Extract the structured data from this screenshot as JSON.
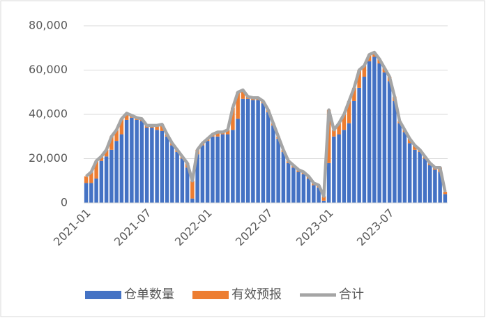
{
  "chart_data": {
    "type": "bar",
    "stacked": true,
    "categories": [
      "2021-01",
      null,
      null,
      null,
      null,
      null,
      null,
      null,
      null,
      null,
      null,
      null,
      "2021-07",
      null,
      null,
      null,
      null,
      null,
      null,
      null,
      null,
      null,
      null,
      null,
      "2022-01",
      null,
      null,
      null,
      null,
      null,
      null,
      null,
      null,
      null,
      null,
      null,
      "2022-07",
      null,
      null,
      null,
      null,
      null,
      null,
      null,
      null,
      null,
      null,
      null,
      "2023-01",
      null,
      null,
      null,
      null,
      null,
      null,
      null,
      null,
      null,
      null,
      null,
      "2023-07",
      null,
      null,
      null,
      null,
      null,
      null,
      null,
      null,
      null,
      null,
      null
    ],
    "series": [
      {
        "name": "仓单数量",
        "type": "bar",
        "color": "#4472c4",
        "values": [
          9000,
          9000,
          11000,
          19000,
          21000,
          24000,
          28000,
          31000,
          37500,
          38500,
          37500,
          37000,
          34000,
          34000,
          33000,
          32500,
          30000,
          26000,
          23000,
          20000,
          16000,
          2000,
          22000,
          26000,
          28000,
          30000,
          30000,
          31000,
          31000,
          33000,
          38000,
          47000,
          47000,
          46500,
          46500,
          45000,
          41000,
          35000,
          29000,
          23000,
          18000,
          16000,
          14000,
          13000,
          11000,
          8000,
          7000,
          1000,
          18000,
          30000,
          31000,
          33000,
          36000,
          46000,
          52000,
          57000,
          64000,
          66000,
          63000,
          59000,
          55000,
          46000,
          36000,
          32000,
          27000,
          24000,
          23000,
          20000,
          17000,
          15000,
          14000,
          4000
        ]
      },
      {
        "name": "有效预报",
        "type": "bar",
        "color": "#ed7d31",
        "values": [
          3000,
          5000,
          8000,
          2000,
          3000,
          6000,
          5000,
          7000,
          3000,
          1000,
          1000,
          1000,
          1000,
          1000,
          2000,
          3000,
          1000,
          1000,
          1000,
          1000,
          2000,
          8000,
          2000,
          1000,
          1000,
          1000,
          2000,
          1000,
          2000,
          10000,
          12000,
          4000,
          1000,
          1000,
          1000,
          1000,
          1000,
          1000,
          1000,
          1000,
          1000,
          1000,
          1000,
          1000,
          1000,
          1000,
          1000,
          2000,
          24000,
          3000,
          5000,
          7000,
          10000,
          6000,
          8000,
          5000,
          3000,
          2000,
          2000,
          2000,
          2000,
          2000,
          1000,
          1000,
          2000,
          2000,
          1000,
          1000,
          1000,
          1000,
          2000,
          1000
        ]
      },
      {
        "name": "合计",
        "type": "line",
        "color": "#a5a5a5",
        "values": [
          12000,
          14000,
          19000,
          21000,
          24000,
          30000,
          33000,
          38000,
          40500,
          39500,
          38500,
          38000,
          35000,
          35000,
          35000,
          35500,
          31000,
          27000,
          24000,
          21000,
          18000,
          10000,
          24000,
          27000,
          29000,
          31000,
          32000,
          32000,
          33000,
          43000,
          50000,
          51000,
          48000,
          47500,
          47500,
          46000,
          42000,
          36000,
          30000,
          24000,
          19000,
          17000,
          15000,
          14000,
          12000,
          9000,
          8000,
          3000,
          42000,
          33000,
          36000,
          40000,
          46000,
          52000,
          60000,
          62000,
          67000,
          68000,
          65000,
          61000,
          57000,
          48000,
          37000,
          33000,
          29000,
          26000,
          24000,
          21000,
          18000,
          16000,
          16000,
          5000
        ]
      }
    ],
    "ylim": [
      0,
      80000
    ],
    "yticks": [
      0,
      {
        "value": 20000,
        "label": "20,000"
      },
      {
        "value": 40000,
        "label": "40,000"
      },
      {
        "value": 60000,
        "label": "60,000"
      },
      {
        "value": 80000,
        "label": "80,000"
      }
    ],
    "grid": true,
    "legend": "bottom"
  }
}
